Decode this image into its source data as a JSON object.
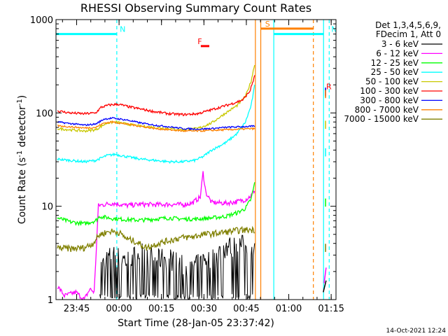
{
  "chart_data": {
    "type": "line",
    "title": "RHESSI Observing Summary Count Rates",
    "xlabel": "Start Time (28-Jan-05 23:37:42)",
    "ylabel_main": "Count Rate (s",
    "ylabel_sup1": "-1",
    "ylabel_mid": " detector",
    "ylabel_sup2": "-1",
    "ylabel_end": ")",
    "yscale": "log",
    "ylim": [
      1,
      1000
    ],
    "xlim_minutes": [
      0,
      99
    ],
    "x_ticks": [
      {
        "label": "23:45",
        "minute": 7.3
      },
      {
        "label": "00:00",
        "minute": 22.3
      },
      {
        "label": "00:15",
        "minute": 37.3
      },
      {
        "label": "00:30",
        "minute": 52.3
      },
      {
        "label": "00:45",
        "minute": 67.3
      },
      {
        "label": "01:00",
        "minute": 82.3
      },
      {
        "label": "01:15",
        "minute": 97.3
      }
    ],
    "y_ticks": [
      {
        "label": "1",
        "value": 1
      },
      {
        "label": "10",
        "value": 10
      },
      {
        "label": "100",
        "value": 100
      },
      {
        "label": "1000",
        "value": 1000
      }
    ],
    "legend_header": [
      "Det 1,3,4,5,6,9,",
      "FDecim 1, Att 0"
    ],
    "legend_position": "right",
    "series": [
      {
        "name": "3 - 6 keV",
        "color": "#000000",
        "points": [
          [
            15.5,
            2.2
          ],
          [
            20,
            2.8
          ],
          [
            25,
            2.4
          ],
          [
            30,
            3.0
          ],
          [
            35,
            2.5
          ],
          [
            40,
            2.6
          ],
          [
            44,
            2.2
          ],
          [
            48,
            2.0
          ],
          [
            52,
            2.4
          ],
          [
            56,
            2.6
          ],
          [
            60,
            3.4
          ],
          [
            64,
            3.5
          ],
          [
            68,
            3.6
          ],
          [
            70.3,
            3.8
          ]
        ],
        "tail": [
          [
            94.5,
            1.2
          ],
          [
            95.5,
            1.6
          ]
        ]
      },
      {
        "name": "6 - 12 keV",
        "color": "#ff00ff",
        "points": [
          [
            0.5,
            1.4
          ],
          [
            3,
            1.1
          ],
          [
            7,
            1.2
          ],
          [
            10,
            1.0
          ],
          [
            12,
            1.3
          ],
          [
            13.5,
            1.2
          ],
          [
            15,
            10.2
          ],
          [
            20,
            10.8
          ],
          [
            25,
            10.2
          ],
          [
            30,
            10.5
          ],
          [
            35,
            10.4
          ],
          [
            40,
            10.5
          ],
          [
            45,
            10.4
          ],
          [
            48,
            10.8
          ],
          [
            51,
            12.5
          ],
          [
            52,
            23
          ],
          [
            53,
            14
          ],
          [
            55,
            11
          ],
          [
            60,
            10.8
          ],
          [
            64,
            11.2
          ],
          [
            67,
            11.8
          ],
          [
            69,
            13
          ],
          [
            70.3,
            15
          ]
        ],
        "tail": [
          [
            94.8,
            1.5
          ],
          [
            95.5,
            2.2
          ]
        ]
      },
      {
        "name": "12 - 25 keV",
        "color": "#00ff00",
        "points": [
          [
            0.5,
            7.5
          ],
          [
            5,
            6.8
          ],
          [
            10,
            6.5
          ],
          [
            14,
            7.0
          ],
          [
            15.5,
            7.8
          ],
          [
            20,
            7.4
          ],
          [
            25,
            7.2
          ],
          [
            30,
            7.1
          ],
          [
            35,
            7.3
          ],
          [
            40,
            7.5
          ],
          [
            45,
            7.3
          ],
          [
            50,
            7.3
          ],
          [
            55,
            7.5
          ],
          [
            60,
            7.8
          ],
          [
            64,
            8.5
          ],
          [
            67,
            9.5
          ],
          [
            69,
            12
          ],
          [
            70.3,
            18
          ]
        ],
        "tail": [
          [
            95.3,
            11.0
          ]
        ]
      },
      {
        "name": "25 - 50 keV",
        "color": "#00ffff",
        "points": [
          [
            0.5,
            32
          ],
          [
            5,
            31
          ],
          [
            10,
            30
          ],
          [
            14,
            31
          ],
          [
            18,
            35
          ],
          [
            21,
            36
          ],
          [
            25,
            34
          ],
          [
            30,
            32
          ],
          [
            35,
            31
          ],
          [
            40,
            30
          ],
          [
            45,
            30
          ],
          [
            49,
            31
          ],
          [
            52,
            34
          ],
          [
            55,
            40
          ],
          [
            60,
            48
          ],
          [
            64,
            60
          ],
          [
            67,
            80
          ],
          [
            69,
            120
          ],
          [
            70.3,
            200
          ]
        ],
        "tail": [
          [
            95.3,
            38
          ]
        ]
      },
      {
        "name": "50 - 100 keV",
        "color": "#c8c800",
        "points": [
          [
            0.5,
            68
          ],
          [
            5,
            66
          ],
          [
            10,
            64
          ],
          [
            14,
            66
          ],
          [
            18,
            78
          ],
          [
            21,
            80
          ],
          [
            25,
            76
          ],
          [
            30,
            72
          ],
          [
            35,
            70
          ],
          [
            40,
            68
          ],
          [
            45,
            66
          ],
          [
            50,
            68
          ],
          [
            55,
            78
          ],
          [
            60,
            100
          ],
          [
            64,
            120
          ],
          [
            67,
            150
          ],
          [
            69,
            220
          ],
          [
            70.3,
            340
          ]
        ],
        "tail": [
          [
            95.3,
            75
          ]
        ]
      },
      {
        "name": "100 - 300 keV",
        "color": "#ff0000",
        "points": [
          [
            0.5,
            105
          ],
          [
            5,
            100
          ],
          [
            10,
            98
          ],
          [
            14,
            100
          ],
          [
            16,
            115
          ],
          [
            19,
            122
          ],
          [
            22,
            124
          ],
          [
            26,
            116
          ],
          [
            30,
            110
          ],
          [
            35,
            103
          ],
          [
            40,
            98
          ],
          [
            45,
            96
          ],
          [
            50,
            98
          ],
          [
            54,
            106
          ],
          [
            58,
            115
          ],
          [
            62,
            125
          ],
          [
            66,
            138
          ],
          [
            68.5,
            170
          ],
          [
            70.3,
            250
          ]
        ],
        "tail": [
          [
            95.3,
            165
          ]
        ]
      },
      {
        "name": "300 - 800 keV",
        "color": "#0000ff",
        "points": [
          [
            0.5,
            80
          ],
          [
            5,
            77
          ],
          [
            10,
            74
          ],
          [
            14,
            76
          ],
          [
            17,
            86
          ],
          [
            20,
            88
          ],
          [
            25,
            84
          ],
          [
            30,
            78
          ],
          [
            35,
            74
          ],
          [
            40,
            71
          ],
          [
            45,
            68
          ],
          [
            50,
            67
          ],
          [
            55,
            68
          ],
          [
            60,
            70
          ],
          [
            65,
            71
          ],
          [
            70.3,
            72
          ]
        ],
        "tail": [
          [
            95.3,
            170
          ]
        ]
      },
      {
        "name": "800 - 7000 keV",
        "color": "#ff8000",
        "points": [
          [
            0.5,
            73
          ],
          [
            5,
            71
          ],
          [
            10,
            69
          ],
          [
            14,
            70
          ],
          [
            17,
            78
          ],
          [
            20,
            80
          ],
          [
            25,
            76
          ],
          [
            30,
            72
          ],
          [
            35,
            68
          ],
          [
            40,
            66
          ],
          [
            45,
            64
          ],
          [
            50,
            64
          ],
          [
            55,
            65
          ],
          [
            60,
            66
          ],
          [
            65,
            67
          ],
          [
            70.3,
            68
          ]
        ],
        "tail": [
          [
            95.3,
            160
          ]
        ]
      },
      {
        "name": "7000 - 15000 keV",
        "color": "#808000",
        "points": [
          [
            0.5,
            3.6
          ],
          [
            5,
            3.5
          ],
          [
            10,
            3.6
          ],
          [
            13,
            4.0
          ],
          [
            15.5,
            5.0
          ],
          [
            19,
            5.4
          ],
          [
            22,
            5.3
          ],
          [
            25,
            4.5
          ],
          [
            28,
            4.2
          ],
          [
            32,
            3.6
          ],
          [
            36,
            4.0
          ],
          [
            40,
            4.3
          ],
          [
            44,
            4.6
          ],
          [
            48,
            4.7
          ],
          [
            52,
            5.0
          ],
          [
            56,
            5.1
          ],
          [
            60,
            5.3
          ],
          [
            64,
            5.5
          ],
          [
            68,
            5.6
          ],
          [
            70.3,
            5.6
          ]
        ],
        "tail": [
          [
            95.3,
            3.6
          ]
        ]
      }
    ],
    "flags": [
      {
        "label": "N",
        "color": "#00ffff",
        "minute": 21.8,
        "bar_from": 0,
        "bar_to": 21.5,
        "bar_value": 700
      },
      {
        "label": "F",
        "color": "#ff0000",
        "minute": 49.3,
        "bar_from": 51.2,
        "bar_to": 54.2,
        "bar_value": 520
      },
      {
        "label": "S",
        "color": "#ff8000",
        "minute": 73.2,
        "bar_from": 72.4,
        "bar_to": 91,
        "bar_value": 800
      },
      {
        "label": "N",
        "color": "#00ffff",
        "minute": 96.6,
        "bar_from": 77,
        "bar_to": 94.6,
        "bar_value": 700
      },
      {
        "label": "R",
        "color": "#ff0000",
        "minute": 94.8,
        "bar_from": 94.8,
        "bar_to": 94.8,
        "bar_value": 170
      }
    ],
    "vlines": [
      {
        "minute": 21.5,
        "color": "#00ffff",
        "dash": true
      },
      {
        "minute": 70.5,
        "color": "#ff8000",
        "dash": false
      },
      {
        "minute": 72.4,
        "color": "#ff8000",
        "dash": false
      },
      {
        "minute": 77.0,
        "color": "#00ffff",
        "dash": false
      },
      {
        "minute": 91.0,
        "color": "#ff8000",
        "dash": true
      },
      {
        "minute": 94.6,
        "color": "#00ffff",
        "dash": false
      },
      {
        "minute": 96.6,
        "color": "#00ffff",
        "dash": true
      }
    ],
    "timestamp": "14-Oct-2021 12:24"
  }
}
